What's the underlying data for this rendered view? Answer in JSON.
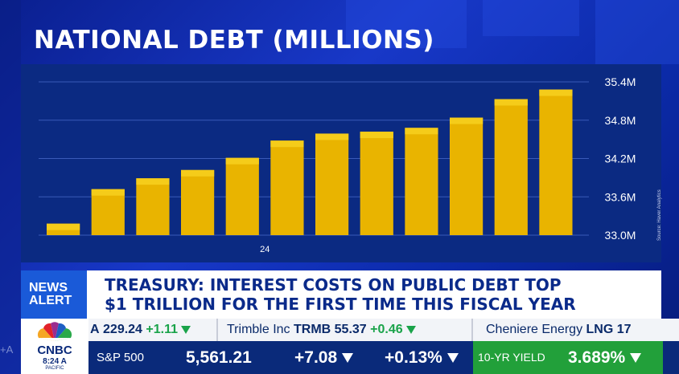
{
  "chart_data": {
    "type": "bar",
    "title": "NATIONAL DEBT (MILLIONS)",
    "categories": [
      "",
      "",
      "",
      "",
      "24",
      "",
      "",
      "",
      "",
      "",
      "",
      ""
    ],
    "values": [
      33.18,
      33.72,
      33.89,
      34.02,
      34.21,
      34.48,
      34.59,
      34.62,
      34.68,
      34.84,
      35.13,
      35.28
    ],
    "ylim": [
      33.0,
      35.4
    ],
    "yticks": [
      33.0,
      33.6,
      34.2,
      34.8,
      35.4
    ],
    "ytick_labels": [
      "33.0M",
      "33.6M",
      "34.2M",
      "34.8M",
      "35.4M"
    ],
    "grid": true,
    "axis_position": "right",
    "source": "Source: Haver Analytics",
    "colors": {
      "bar": "#e9b400",
      "bar_top": "#f5cc1a",
      "panel": "#0b2a82",
      "grid": "#3a5ab8"
    }
  },
  "news_alert": {
    "badge_line1": "NEWS",
    "badge_line2": "ALERT",
    "headline_line1": "TREASURY: INTEREST COSTS ON PUBLIC DEBT TOP",
    "headline_line2": "$1 TRILLION FOR THE FIRST TIME THIS FISCAL YEAR"
  },
  "ticker": {
    "items": [
      {
        "prefix": "A",
        "price": "229.24",
        "change": "+1.11"
      },
      {
        "name": "Trimble Inc",
        "symbol": "TRMB",
        "price": "55.37",
        "change": "+0.46"
      },
      {
        "name": "Cheniere Energy",
        "symbol": "LNG",
        "price": "17"
      }
    ],
    "index": {
      "name": "S&P 500",
      "value": "5,561.21",
      "change": "+7.08",
      "pct": "+0.13%"
    },
    "yield": {
      "label": "10-YR YIELD",
      "value": "3.689%"
    }
  },
  "logo": {
    "name": "CNBC",
    "time": "8:24",
    "ampm": "A",
    "zone": "PACIFIC"
  },
  "edge_glyph": "+A"
}
